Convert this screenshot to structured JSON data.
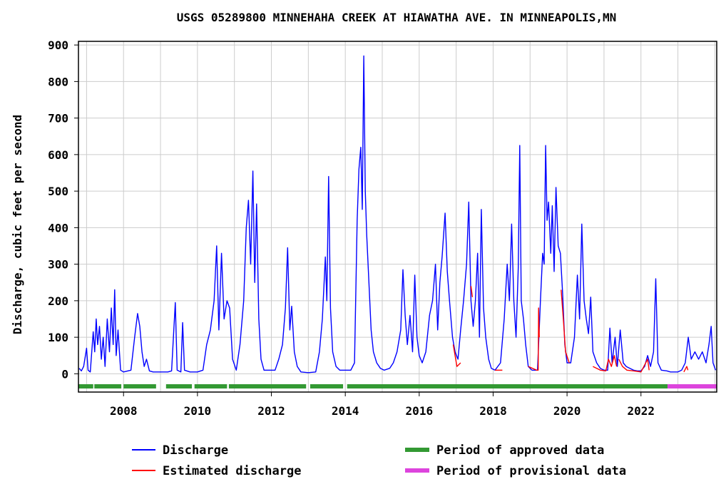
{
  "chart_data": {
    "type": "line",
    "title": "USGS 05289800 MINNEHAHA CREEK AT HIAWATHA AVE. IN MINNEAPOLIS,MN",
    "ylabel": "Discharge, cubic feet per second",
    "xlabel": "",
    "xlim": [
      2006.78,
      2024.05
    ],
    "ylim": [
      -50,
      910
    ],
    "y_ticks": [
      "0",
      "100",
      "200",
      "300",
      "400",
      "500",
      "600",
      "700",
      "800",
      "900"
    ],
    "x_ticks": [
      "2008",
      "2010",
      "2012",
      "2014",
      "2016",
      "2018",
      "2020",
      "2022"
    ],
    "grid": true,
    "legend_position": "bottom",
    "legend": {
      "discharge": "Discharge",
      "estimated": "Estimated discharge",
      "approved": "Period of approved data",
      "provisional": "Period of provisional data"
    },
    "colors": {
      "discharge": "#0000ff",
      "estimated": "#ff0000",
      "approved": "#339933",
      "provisional": "#dd44dd",
      "grid": "#cccccc"
    },
    "series": [
      {
        "name": "Discharge",
        "points": [
          [
            2006.8,
            15
          ],
          [
            2006.86,
            8
          ],
          [
            2006.92,
            20
          ],
          [
            2007.0,
            70
          ],
          [
            2007.04,
            10
          ],
          [
            2007.1,
            5
          ],
          [
            2007.18,
            115
          ],
          [
            2007.22,
            60
          ],
          [
            2007.26,
            150
          ],
          [
            2007.3,
            80
          ],
          [
            2007.35,
            130
          ],
          [
            2007.4,
            40
          ],
          [
            2007.45,
            100
          ],
          [
            2007.5,
            20
          ],
          [
            2007.56,
            150
          ],
          [
            2007.62,
            60
          ],
          [
            2007.67,
            180
          ],
          [
            2007.72,
            80
          ],
          [
            2007.76,
            230
          ],
          [
            2007.8,
            50
          ],
          [
            2007.85,
            120
          ],
          [
            2007.92,
            10
          ],
          [
            2008.0,
            5
          ],
          [
            2008.2,
            10
          ],
          [
            2008.3,
            100
          ],
          [
            2008.38,
            165
          ],
          [
            2008.44,
            130
          ],
          [
            2008.5,
            60
          ],
          [
            2008.56,
            20
          ],
          [
            2008.62,
            40
          ],
          [
            2008.7,
            8
          ],
          [
            2008.8,
            5
          ],
          [
            2009.0,
            5
          ],
          [
            2009.2,
            5
          ],
          [
            2009.3,
            8
          ],
          [
            2009.4,
            195
          ],
          [
            2009.45,
            10
          ],
          [
            2009.55,
            5
          ],
          [
            2009.6,
            140
          ],
          [
            2009.65,
            10
          ],
          [
            2009.8,
            5
          ],
          [
            2010.0,
            5
          ],
          [
            2010.15,
            10
          ],
          [
            2010.25,
            80
          ],
          [
            2010.35,
            120
          ],
          [
            2010.45,
            200
          ],
          [
            2010.52,
            350
          ],
          [
            2010.58,
            120
          ],
          [
            2010.65,
            330
          ],
          [
            2010.72,
            150
          ],
          [
            2010.8,
            200
          ],
          [
            2010.87,
            180
          ],
          [
            2010.95,
            40
          ],
          [
            2011.05,
            10
          ],
          [
            2011.15,
            80
          ],
          [
            2011.25,
            200
          ],
          [
            2011.32,
            400
          ],
          [
            2011.38,
            475
          ],
          [
            2011.44,
            300
          ],
          [
            2011.5,
            555
          ],
          [
            2011.55,
            250
          ],
          [
            2011.6,
            465
          ],
          [
            2011.66,
            150
          ],
          [
            2011.72,
            40
          ],
          [
            2011.8,
            10
          ],
          [
            2011.95,
            10
          ],
          [
            2012.1,
            10
          ],
          [
            2012.2,
            40
          ],
          [
            2012.3,
            80
          ],
          [
            2012.38,
            180
          ],
          [
            2012.44,
            345
          ],
          [
            2012.5,
            120
          ],
          [
            2012.55,
            185
          ],
          [
            2012.62,
            60
          ],
          [
            2012.7,
            20
          ],
          [
            2012.8,
            5
          ],
          [
            2013.0,
            3
          ],
          [
            2013.2,
            5
          ],
          [
            2013.3,
            60
          ],
          [
            2013.38,
            150
          ],
          [
            2013.46,
            320
          ],
          [
            2013.5,
            200
          ],
          [
            2013.55,
            540
          ],
          [
            2013.6,
            180
          ],
          [
            2013.66,
            60
          ],
          [
            2013.75,
            20
          ],
          [
            2013.85,
            10
          ],
          [
            2014.0,
            10
          ],
          [
            2014.15,
            10
          ],
          [
            2014.25,
            30
          ],
          [
            2014.32,
            420
          ],
          [
            2014.37,
            560
          ],
          [
            2014.42,
            620
          ],
          [
            2014.46,
            450
          ],
          [
            2014.5,
            870
          ],
          [
            2014.54,
            500
          ],
          [
            2014.58,
            380
          ],
          [
            2014.64,
            250
          ],
          [
            2014.7,
            120
          ],
          [
            2014.76,
            60
          ],
          [
            2014.85,
            30
          ],
          [
            2014.95,
            15
          ],
          [
            2015.05,
            10
          ],
          [
            2015.2,
            15
          ],
          [
            2015.3,
            30
          ],
          [
            2015.4,
            60
          ],
          [
            2015.5,
            120
          ],
          [
            2015.56,
            285
          ],
          [
            2015.62,
            160
          ],
          [
            2015.68,
            80
          ],
          [
            2015.75,
            160
          ],
          [
            2015.82,
            60
          ],
          [
            2015.88,
            270
          ],
          [
            2015.94,
            100
          ],
          [
            2016.0,
            50
          ],
          [
            2016.08,
            30
          ],
          [
            2016.18,
            60
          ],
          [
            2016.28,
            160
          ],
          [
            2016.36,
            200
          ],
          [
            2016.44,
            300
          ],
          [
            2016.5,
            120
          ],
          [
            2016.56,
            250
          ],
          [
            2016.62,
            320
          ],
          [
            2016.7,
            440
          ],
          [
            2016.76,
            280
          ],
          [
            2016.82,
            200
          ],
          [
            2016.9,
            100
          ],
          [
            2016.97,
            60
          ],
          [
            2017.05,
            40
          ],
          [
            2017.12,
            120
          ],
          [
            2017.2,
            200
          ],
          [
            2017.28,
            300
          ],
          [
            2017.34,
            470
          ],
          [
            2017.4,
            200
          ],
          [
            2017.46,
            130
          ],
          [
            2017.52,
            200
          ],
          [
            2017.58,
            330
          ],
          [
            2017.63,
            100
          ],
          [
            2017.68,
            450
          ],
          [
            2017.74,
            180
          ],
          [
            2017.8,
            100
          ],
          [
            2017.88,
            40
          ],
          [
            2017.95,
            15
          ],
          [
            2018.05,
            10
          ],
          [
            2018.2,
            30
          ],
          [
            2018.3,
            150
          ],
          [
            2018.38,
            300
          ],
          [
            2018.44,
            200
          ],
          [
            2018.5,
            410
          ],
          [
            2018.56,
            200
          ],
          [
            2018.62,
            100
          ],
          [
            2018.68,
            290
          ],
          [
            2018.72,
            625
          ],
          [
            2018.76,
            200
          ],
          [
            2018.82,
            150
          ],
          [
            2018.88,
            80
          ],
          [
            2018.95,
            20
          ],
          [
            2019.05,
            10
          ],
          [
            2019.2,
            10
          ],
          [
            2019.28,
            200
          ],
          [
            2019.34,
            330
          ],
          [
            2019.38,
            300
          ],
          [
            2019.42,
            625
          ],
          [
            2019.46,
            420
          ],
          [
            2019.5,
            470
          ],
          [
            2019.56,
            330
          ],
          [
            2019.6,
            460
          ],
          [
            2019.65,
            280
          ],
          [
            2019.7,
            510
          ],
          [
            2019.76,
            350
          ],
          [
            2019.82,
            330
          ],
          [
            2019.88,
            220
          ],
          [
            2019.94,
            80
          ],
          [
            2020.0,
            30
          ],
          [
            2020.1,
            30
          ],
          [
            2020.2,
            100
          ],
          [
            2020.28,
            270
          ],
          [
            2020.34,
            150
          ],
          [
            2020.4,
            410
          ],
          [
            2020.46,
            200
          ],
          [
            2020.52,
            150
          ],
          [
            2020.58,
            110
          ],
          [
            2020.64,
            210
          ],
          [
            2020.7,
            60
          ],
          [
            2020.8,
            30
          ],
          [
            2020.9,
            15
          ],
          [
            2021.0,
            10
          ],
          [
            2021.1,
            10
          ],
          [
            2021.16,
            125
          ],
          [
            2021.22,
            30
          ],
          [
            2021.3,
            100
          ],
          [
            2021.36,
            20
          ],
          [
            2021.44,
            120
          ],
          [
            2021.52,
            30
          ],
          [
            2021.6,
            20
          ],
          [
            2021.7,
            15
          ],
          [
            2021.8,
            10
          ],
          [
            2021.9,
            8
          ],
          [
            2022.0,
            8
          ],
          [
            2022.1,
            20
          ],
          [
            2022.18,
            50
          ],
          [
            2022.26,
            20
          ],
          [
            2022.34,
            60
          ],
          [
            2022.4,
            260
          ],
          [
            2022.46,
            30
          ],
          [
            2022.55,
            10
          ],
          [
            2022.7,
            8
          ],
          [
            2022.8,
            5
          ],
          [
            2023.0,
            5
          ],
          [
            2023.1,
            10
          ],
          [
            2023.2,
            30
          ],
          [
            2023.28,
            100
          ],
          [
            2023.36,
            40
          ],
          [
            2023.46,
            60
          ],
          [
            2023.56,
            40
          ],
          [
            2023.66,
            60
          ],
          [
            2023.76,
            30
          ],
          [
            2023.84,
            80
          ],
          [
            2023.9,
            130
          ],
          [
            2023.95,
            30
          ],
          [
            2024.02,
            10
          ]
        ]
      },
      {
        "name": "Estimated discharge",
        "segments": [
          [
            [
              2016.92,
              80
            ],
            [
              2017.02,
              20
            ],
            [
              2017.12,
              30
            ]
          ],
          [
            [
              2017.4,
              240
            ],
            [
              2017.44,
              210
            ]
          ],
          [
            [
              2018.05,
              10
            ],
            [
              2018.25,
              10
            ]
          ],
          [
            [
              2018.95,
              20
            ],
            [
              2019.18,
              10
            ],
            [
              2019.22,
              10
            ],
            [
              2019.23,
              180
            ],
            [
              2019.25,
              100
            ]
          ],
          [
            [
              2019.84,
              230
            ],
            [
              2019.9,
              150
            ],
            [
              2019.96,
              60
            ],
            [
              2020.06,
              30
            ]
          ],
          [
            [
              2020.7,
              20
            ],
            [
              2020.9,
              10
            ],
            [
              2021.05,
              8
            ],
            [
              2021.12,
              40
            ],
            [
              2021.2,
              20
            ],
            [
              2021.28,
              50
            ],
            [
              2021.34,
              20
            ]
          ],
          [
            [
              2021.4,
              40
            ],
            [
              2021.5,
              20
            ],
            [
              2021.62,
              10
            ],
            [
              2021.8,
              8
            ],
            [
              2022.0,
              5
            ],
            [
              2022.18,
              40
            ],
            [
              2022.22,
              10
            ]
          ],
          [
            [
              2023.16,
              5
            ],
            [
              2023.24,
              20
            ],
            [
              2023.27,
              10
            ]
          ]
        ]
      }
    ],
    "approved_periods": [
      [
        2006.78,
        2007.18
      ],
      [
        2007.21,
        2007.94
      ],
      [
        2008.0,
        2008.88
      ],
      [
        2009.15,
        2009.85
      ],
      [
        2009.92,
        2010.8
      ],
      [
        2010.85,
        2012.94
      ],
      [
        2013.05,
        2013.94
      ],
      [
        2014.05,
        2022.72
      ]
    ],
    "provisional_periods": [
      [
        2022.72,
        2024.05
      ]
    ]
  }
}
